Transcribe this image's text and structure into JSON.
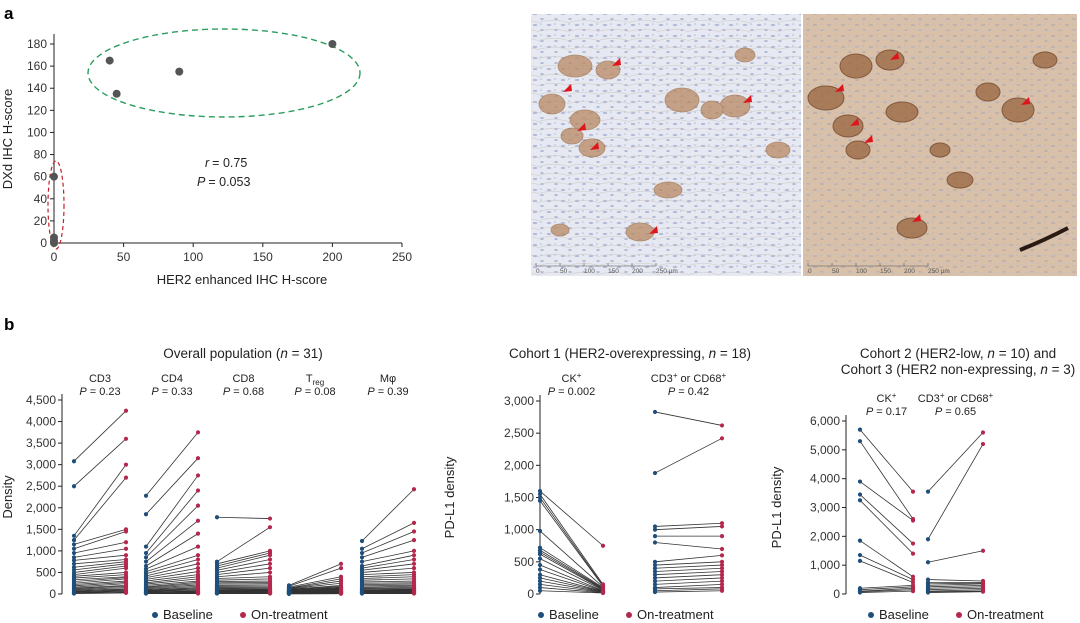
{
  "panel_labels": [
    "a",
    "b"
  ],
  "micrograph": {
    "scale_ticks": [
      "0",
      "50",
      "100",
      "150",
      "200",
      "250 µm"
    ],
    "colors": {
      "background": "#e4e7f0",
      "nuclei": "#7d87b8",
      "stain_light": "#b07a4c",
      "stain_heavy": "#7a4424",
      "arrow": "#e0141c"
    }
  },
  "chart_data": [
    {
      "type": "scatter",
      "xlabel": "HER2 enhanced IHC H-score",
      "ylabel": "DXd IHC H-score",
      "xlim": [
        0,
        250
      ],
      "ylim": [
        0,
        180
      ],
      "xticks": [
        "0",
        "50",
        "100",
        "150",
        "200",
        "250"
      ],
      "yticks": [
        "0",
        "20",
        "40",
        "60",
        "80",
        "100",
        "120",
        "140",
        "160",
        "180"
      ],
      "points": [
        {
          "x": 0,
          "y": 60
        },
        {
          "x": 0,
          "y": 5
        },
        {
          "x": 0,
          "y": 2
        },
        {
          "x": 0,
          "y": 0
        },
        {
          "x": 40,
          "y": 165
        },
        {
          "x": 45,
          "y": 135
        },
        {
          "x": 90,
          "y": 155
        },
        {
          "x": 200,
          "y": 180
        }
      ],
      "annotation": {
        "r_label": "r",
        "r_value": "= 0.75",
        "p_label": "P",
        "p_value": "= 0.053"
      },
      "grid": false,
      "colors": {
        "points": "#555555",
        "cluster_high": "#2a9d5c",
        "cluster_low": "#c0202a"
      }
    },
    {
      "type": "line",
      "title": "Overall population (n = 31)",
      "ylabel": "Density",
      "ylim": [
        0,
        4500
      ],
      "yticks": [
        "0",
        "500",
        "1,000",
        "1,500",
        "2,000",
        "2,500",
        "3,000",
        "3,500",
        "4,000",
        "4,500"
      ],
      "groups": [
        {
          "name": "CD3",
          "p": "P = 0.23",
          "baseline": [
            3080,
            2500,
            1350,
            1250,
            1150,
            1050,
            950,
            850,
            780,
            700,
            620,
            560,
            500,
            450,
            410,
            370,
            330,
            290,
            250,
            220,
            190,
            160,
            140,
            120,
            100,
            80,
            60,
            45,
            30,
            20,
            10
          ],
          "on_treatment": [
            4250,
            3600,
            3000,
            2700,
            1500,
            1450,
            1200,
            1050,
            900,
            800,
            750,
            700,
            650,
            600,
            500,
            450,
            400,
            380,
            350,
            300,
            270,
            240,
            200,
            180,
            150,
            120,
            100,
            80,
            60,
            40,
            25
          ]
        },
        {
          "name": "CD4",
          "p": "P = 0.33",
          "baseline": [
            2280,
            1850,
            1100,
            950,
            850,
            750,
            650,
            580,
            520,
            470,
            420,
            380,
            340,
            300,
            260,
            230,
            200,
            170,
            150,
            130,
            110,
            95,
            80,
            70,
            60,
            50,
            40,
            30,
            20,
            15,
            10
          ],
          "on_treatment": [
            3750,
            3150,
            2750,
            2400,
            2050,
            1700,
            1400,
            1100,
            900,
            800,
            700,
            600,
            520,
            450,
            400,
            350,
            300,
            270,
            240,
            210,
            180,
            150,
            130,
            110,
            90,
            70,
            55,
            40,
            30,
            20,
            10
          ]
        },
        {
          "name": "CD8",
          "p": "P = 0.68",
          "baseline": [
            1780,
            750,
            700,
            650,
            600,
            550,
            500,
            450,
            400,
            360,
            320,
            290,
            260,
            230,
            200,
            180,
            160,
            140,
            120,
            100,
            90,
            80,
            70,
            60,
            50,
            40,
            30,
            25,
            20,
            15,
            10
          ],
          "on_treatment": [
            1750,
            1550,
            1000,
            950,
            900,
            800,
            700,
            600,
            500,
            400,
            350,
            300,
            270,
            240,
            210,
            180,
            150,
            130,
            110,
            100,
            90,
            80,
            70,
            60,
            50,
            40,
            30,
            25,
            20,
            15,
            10
          ]
        },
        {
          "name": "Treg",
          "name_main": "T",
          "name_sub": "reg",
          "p": "P = 0.08",
          "baseline": [
            200,
            180,
            160,
            140,
            130,
            120,
            110,
            100,
            90,
            80,
            75,
            70,
            65,
            60,
            55,
            50,
            45,
            40,
            35,
            30,
            28,
            25,
            22,
            20,
            18,
            15,
            12,
            10,
            8,
            5,
            3
          ],
          "on_treatment": [
            700,
            600,
            400,
            350,
            300,
            250,
            200,
            180,
            160,
            150,
            140,
            130,
            120,
            110,
            100,
            90,
            80,
            70,
            65,
            60,
            55,
            50,
            45,
            40,
            35,
            30,
            25,
            20,
            15,
            10,
            5
          ]
        },
        {
          "name": "Mφ",
          "p": "P = 0.39",
          "baseline": [
            1230,
            1050,
            950,
            850,
            750,
            650,
            600,
            550,
            500,
            450,
            400,
            360,
            320,
            280,
            250,
            220,
            190,
            160,
            140,
            120,
            100,
            90,
            80,
            70,
            60,
            50,
            40,
            30,
            25,
            20,
            10
          ],
          "on_treatment": [
            2430,
            1650,
            1450,
            1250,
            1000,
            900,
            800,
            700,
            600,
            500,
            450,
            400,
            350,
            300,
            260,
            230,
            200,
            180,
            150,
            130,
            110,
            100,
            90,
            80,
            70,
            60,
            50,
            40,
            30,
            20,
            10
          ]
        }
      ],
      "legend": [
        "Baseline",
        "On-treatment"
      ],
      "colors": {
        "baseline": "#1f4e7a",
        "on_treatment": "#b5284d",
        "line": "#333333"
      }
    },
    {
      "type": "line",
      "title": "Cohort 1 (HER2-overexpressing, n = 18)",
      "ylabel": "PD-L1 density",
      "ylim": [
        0,
        3000
      ],
      "yticks": [
        "0",
        "500",
        "1,000",
        "1,500",
        "2,000",
        "2,500",
        "3,000"
      ],
      "groups": [
        {
          "name": "CK+",
          "name_main": "CK",
          "name_sup": "+",
          "p": "P = 0.002",
          "baseline": [
            1600,
            1550,
            1500,
            1450,
            980,
            720,
            680,
            650,
            620,
            550,
            450,
            380,
            300,
            250,
            200,
            150,
            100,
            50
          ],
          "on_treatment": [
            750,
            150,
            130,
            120,
            110,
            100,
            90,
            80,
            70,
            60,
            50,
            45,
            40,
            35,
            30,
            25,
            20,
            15
          ]
        },
        {
          "name": "CD3+ or CD68+",
          "name_parts": [
            "CD3",
            "+",
            " or CD68",
            "+"
          ],
          "p": "P = 0.42",
          "baseline": [
            2830,
            1880,
            1050,
            1000,
            900,
            800,
            500,
            450,
            400,
            350,
            300,
            250,
            200,
            150,
            100,
            80,
            50,
            30
          ],
          "on_treatment": [
            2620,
            2420,
            1100,
            1050,
            900,
            700,
            600,
            500,
            450,
            400,
            350,
            300,
            250,
            200,
            150,
            100,
            80,
            50
          ]
        }
      ],
      "legend": [
        "Baseline",
        "On-treatment"
      ],
      "colors": {
        "baseline": "#1f4e7a",
        "on_treatment": "#b5284d",
        "line": "#333333"
      }
    },
    {
      "type": "line",
      "title": "Cohort 2 (HER2-low, n = 10) and",
      "title_line2": "Cohort 3 (HER2 non-expressing, n = 3)",
      "ylabel": "PD-L1 density",
      "ylim": [
        0,
        6000
      ],
      "yticks": [
        "0",
        "1,000",
        "2,000",
        "3,000",
        "4,000",
        "5,000",
        "6,000"
      ],
      "groups": [
        {
          "name": "CK+",
          "name_main": "CK",
          "name_sup": "+",
          "p": "P = 0.17",
          "baseline": [
            5700,
            5300,
            3900,
            3450,
            3250,
            1850,
            1350,
            1150,
            200,
            150,
            100,
            80,
            50
          ],
          "on_treatment": [
            3550,
            2600,
            2550,
            1750,
            1400,
            600,
            500,
            400,
            300,
            250,
            200,
            150,
            100
          ]
        },
        {
          "name": "CD3+ or CD68+",
          "name_parts": [
            "CD3",
            "+",
            " or CD68",
            "+"
          ],
          "p": "P = 0.65",
          "baseline": [
            3550,
            1900,
            1100,
            500,
            400,
            350,
            300,
            250,
            200,
            150,
            100,
            80,
            50
          ],
          "on_treatment": [
            5600,
            5200,
            1500,
            450,
            400,
            380,
            350,
            300,
            250,
            200,
            150,
            100,
            80
          ]
        }
      ],
      "legend": [
        "Baseline",
        "On-treatment"
      ],
      "colors": {
        "baseline": "#1f4e7a",
        "on_treatment": "#b5284d",
        "line": "#333333"
      }
    }
  ]
}
